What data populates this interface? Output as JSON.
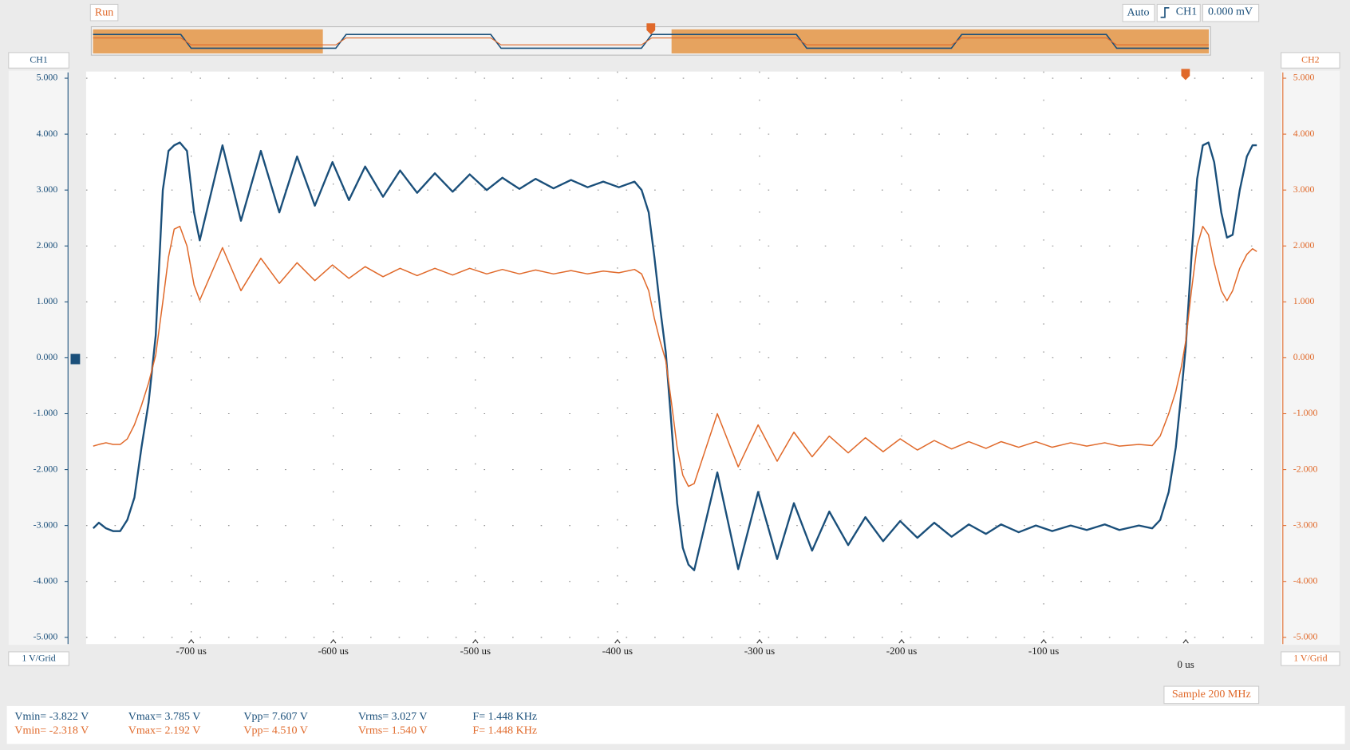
{
  "status": "Run",
  "trigger": {
    "mode": "Auto",
    "source": "CH1",
    "level": "0.000 mV"
  },
  "sample_rate": "Sample 200 MHz",
  "measurements": [
    [
      "Vmin= -3.822 V",
      "Vmax= 3.785 V",
      "Vpp= 7.607 V",
      "Vrms= 3.027 V",
      "F= 1.448 KHz"
    ],
    [
      "Vmin= -2.318 V",
      "Vmax= 2.192 V",
      "Vpp= 4.510 V",
      "Vrms= 1.540 V",
      "F= 1.448 KHz"
    ]
  ],
  "chart_data": {
    "type": "line",
    "y_scale_label": "1 V/Grid",
    "y2_scale_label": "1 V/Grid",
    "grid": true,
    "xlim": [
      -774,
      55
    ],
    "ylim": [
      -5.12,
      5.12
    ],
    "y2lim": [
      -5.12,
      5.12
    ],
    "xticks": [
      {
        "value": -700,
        "label": "-700 us"
      },
      {
        "value": -600,
        "label": "-600 us"
      },
      {
        "value": -500,
        "label": "-500 us"
      },
      {
        "value": -400,
        "label": "-400 us"
      },
      {
        "value": -300,
        "label": "-300 us"
      },
      {
        "value": -200,
        "label": "-200 us"
      },
      {
        "value": -100,
        "label": "-100 us"
      },
      {
        "value": 0,
        "label": "0 us"
      }
    ],
    "yticks": [
      {
        "value": 5,
        "label": "5.000"
      },
      {
        "value": 4,
        "label": "4.000"
      },
      {
        "value": 3,
        "label": "3.000"
      },
      {
        "value": 2,
        "label": "2.000"
      },
      {
        "value": 1,
        "label": "1.000"
      },
      {
        "value": 0,
        "label": "0.000"
      },
      {
        "value": -1,
        "label": "-1.000"
      },
      {
        "value": -2,
        "label": "-2.000"
      },
      {
        "value": -3,
        "label": "-3.000"
      },
      {
        "value": -4,
        "label": "-4.000"
      },
      {
        "value": -5,
        "label": "-5.000"
      }
    ],
    "y2ticks": [
      {
        "value": 5,
        "label": "5.000"
      },
      {
        "value": 4,
        "label": "4.000"
      },
      {
        "value": 3,
        "label": "3.000"
      },
      {
        "value": 2,
        "label": "2.000"
      },
      {
        "value": 1,
        "label": "1.000"
      },
      {
        "value": 0,
        "label": "0.000"
      },
      {
        "value": -1,
        "label": "-1.000"
      },
      {
        "value": -2,
        "label": "-2.000"
      },
      {
        "value": -3,
        "label": "-3.000"
      },
      {
        "value": -4,
        "label": "-4.000"
      },
      {
        "value": -5,
        "label": "-5.000"
      }
    ],
    "x": [
      -769,
      -765,
      -760,
      -755,
      -750,
      -745,
      -740,
      -735,
      -730,
      -725,
      -720,
      -716,
      -712,
      -708,
      -703,
      -698,
      -694,
      -678,
      -665,
      -651,
      -638,
      -625.5,
      -613,
      -600.6,
      -589,
      -577.6,
      -565,
      -553,
      -541,
      -528.5,
      -516,
      -504,
      -492,
      -481,
      -469,
      -457.6,
      -445,
      -432.7,
      -421,
      -410,
      -399,
      -388,
      -383,
      -378,
      -374,
      -370,
      -366,
      -362,
      -358,
      -354,
      -350,
      -346,
      -329.7,
      -315,
      -301,
      -287.6,
      -275.8,
      -263,
      -250.9,
      -237.6,
      -225.5,
      -213,
      -201,
      -188.9,
      -177,
      -164.8,
      -152.7,
      -140.6,
      -130,
      -117.6,
      -105.5,
      -94,
      -81,
      -69.7,
      -57,
      -46.7,
      -33,
      -23.6,
      -18,
      -12,
      -7,
      -3,
      0,
      4,
      8,
      12,
      16,
      20,
      25,
      29,
      33,
      38,
      43,
      47,
      50
    ],
    "series": [
      {
        "name": "CH1",
        "color": "#1a4f7a",
        "axis": "y",
        "values": [
          -3.05,
          -2.95,
          -3.05,
          -3.1,
          -3.1,
          -2.9,
          -2.5,
          -1.6,
          -0.8,
          0.4,
          3.0,
          3.7,
          3.8,
          3.85,
          3.7,
          2.6,
          2.1,
          3.8,
          2.45,
          3.7,
          2.6,
          3.6,
          2.72,
          3.5,
          2.82,
          3.42,
          2.88,
          3.35,
          2.95,
          3.3,
          2.97,
          3.28,
          3.0,
          3.22,
          3.02,
          3.2,
          3.03,
          3.18,
          3.05,
          3.15,
          3.05,
          3.15,
          3.0,
          2.6,
          1.8,
          0.9,
          0.1,
          -1.2,
          -2.6,
          -3.4,
          -3.7,
          -3.8,
          -2.05,
          -3.78,
          -2.4,
          -3.6,
          -2.6,
          -3.45,
          -2.75,
          -3.35,
          -2.85,
          -3.28,
          -2.92,
          -3.22,
          -2.95,
          -3.2,
          -2.98,
          -3.15,
          -2.98,
          -3.12,
          -3.0,
          -3.1,
          -3.0,
          -3.08,
          -2.98,
          -3.08,
          -3.0,
          -3.05,
          -2.9,
          -2.4,
          -1.6,
          -0.6,
          0.2,
          1.8,
          3.2,
          3.8,
          3.85,
          3.5,
          2.6,
          2.15,
          2.2,
          3.0,
          3.6,
          3.8,
          3.8
        ]
      },
      {
        "name": "CH2",
        "color": "#e0692a",
        "axis": "y2",
        "values": [
          -1.58,
          -1.55,
          -1.52,
          -1.55,
          -1.55,
          -1.45,
          -1.2,
          -0.85,
          -0.45,
          0.05,
          1.0,
          1.8,
          2.3,
          2.35,
          2.0,
          1.3,
          1.03,
          1.97,
          1.2,
          1.78,
          1.33,
          1.7,
          1.38,
          1.66,
          1.42,
          1.63,
          1.45,
          1.6,
          1.47,
          1.6,
          1.48,
          1.6,
          1.5,
          1.58,
          1.5,
          1.57,
          1.5,
          1.56,
          1.5,
          1.55,
          1.52,
          1.58,
          1.5,
          1.2,
          0.7,
          0.3,
          -0.05,
          -0.8,
          -1.6,
          -2.1,
          -2.3,
          -2.25,
          -1.0,
          -1.95,
          -1.2,
          -1.85,
          -1.33,
          -1.77,
          -1.4,
          -1.7,
          -1.43,
          -1.68,
          -1.45,
          -1.65,
          -1.48,
          -1.63,
          -1.5,
          -1.62,
          -1.5,
          -1.6,
          -1.5,
          -1.6,
          -1.52,
          -1.58,
          -1.52,
          -1.58,
          -1.55,
          -1.57,
          -1.4,
          -1.0,
          -0.6,
          -0.15,
          0.3,
          1.2,
          2.0,
          2.35,
          2.2,
          1.7,
          1.2,
          1.02,
          1.2,
          1.6,
          1.85,
          1.95,
          1.9
        ]
      }
    ]
  }
}
